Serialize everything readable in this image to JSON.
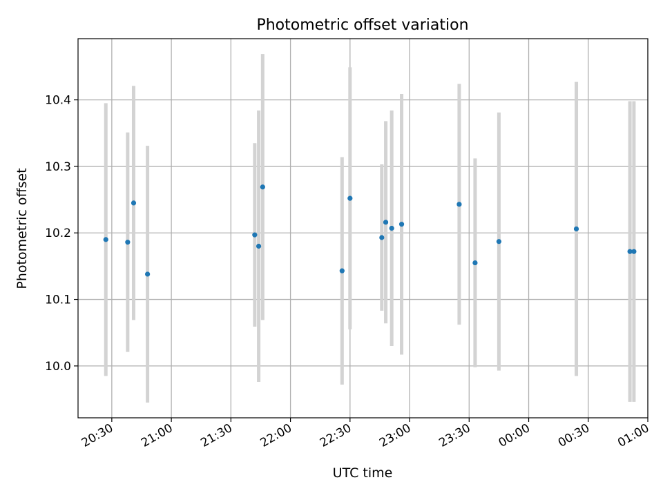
{
  "chart_data": {
    "type": "scatter",
    "title": "Photometric offset variation",
    "xlabel": "UTC time",
    "ylabel": "Photometric offset",
    "x_ticks": [
      "20:30",
      "21:00",
      "21:30",
      "22:00",
      "22:30",
      "23:00",
      "23:30",
      "00:00",
      "00:30",
      "01:00"
    ],
    "y_ticks": [
      "10.0",
      "10.1",
      "10.2",
      "10.3",
      "10.4"
    ],
    "xlim": [
      "20:13",
      "01:00"
    ],
    "ylim": [
      9.922,
      10.492
    ],
    "grid": true,
    "legend": "none",
    "colors": {
      "points": "#1f77b4",
      "errorbars": "#d3d3d3",
      "grid": "#b0b0b0"
    },
    "points": [
      {
        "time": "20:27",
        "y": 10.19,
        "err": 0.205
      },
      {
        "time": "20:38",
        "y": 10.186,
        "err": 0.165
      },
      {
        "time": "20:41",
        "y": 10.245,
        "err": 0.176
      },
      {
        "time": "20:48",
        "y": 10.138,
        "err": 0.193
      },
      {
        "time": "21:42",
        "y": 10.197,
        "err": 0.138
      },
      {
        "time": "21:44",
        "y": 10.18,
        "err": 0.204
      },
      {
        "time": "21:46",
        "y": 10.269,
        "err": 0.2
      },
      {
        "time": "22:26",
        "y": 10.143,
        "err": 0.171
      },
      {
        "time": "22:30",
        "y": 10.252,
        "err": 0.197
      },
      {
        "time": "22:46",
        "y": 10.193,
        "err": 0.11
      },
      {
        "time": "22:48",
        "y": 10.216,
        "err": 0.152
      },
      {
        "time": "22:51",
        "y": 10.207,
        "err": 0.177
      },
      {
        "time": "22:56",
        "y": 10.213,
        "err": 0.196
      },
      {
        "time": "23:25",
        "y": 10.243,
        "err": 0.181
      },
      {
        "time": "23:33",
        "y": 10.155,
        "err": 0.157
      },
      {
        "time": "23:45",
        "y": 10.187,
        "err": 0.194
      },
      {
        "time": "00:24",
        "y": 10.206,
        "err": 0.221
      },
      {
        "time": "00:51",
        "y": 10.172,
        "err": 0.226
      },
      {
        "time": "00:53",
        "y": 10.172,
        "err": 0.226
      }
    ]
  }
}
